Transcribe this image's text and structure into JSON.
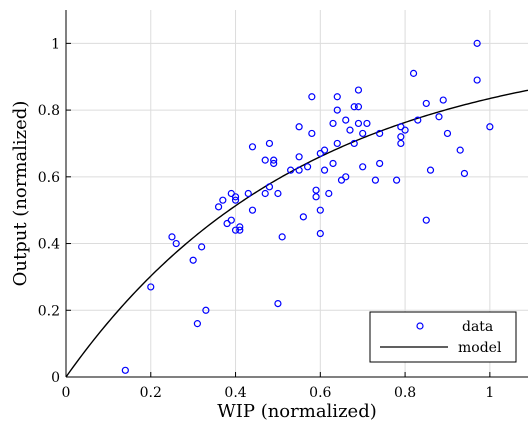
{
  "chart_data": {
    "type": "scatter",
    "title": "",
    "xlabel": "WIP (normalized)",
    "ylabel": "Output (normalized)",
    "xlim": [
      0,
      1.09
    ],
    "ylim": [
      0,
      1.1
    ],
    "xticks": [
      0,
      0.2,
      0.4,
      0.6,
      0.8,
      1
    ],
    "xtick_labels": [
      "0",
      "0.2",
      "0.4",
      "0.6",
      "0.8",
      "1"
    ],
    "yticks": [
      0,
      0.2,
      0.4,
      0.6,
      0.8,
      1
    ],
    "ytick_labels": [
      "0",
      "0.2",
      "0.4",
      "0.6",
      "0.8",
      "1"
    ],
    "grid": true,
    "legend_position": "bottom-right",
    "colors": {
      "data": "#0000ff",
      "model": "#000000",
      "grid": "#dcdcdc"
    },
    "series": [
      {
        "name": "data",
        "type": "scatter",
        "marker": "circle-open",
        "points": [
          [
            0.14,
            0.02
          ],
          [
            0.2,
            0.27
          ],
          [
            0.25,
            0.42
          ],
          [
            0.26,
            0.4
          ],
          [
            0.3,
            0.35
          ],
          [
            0.32,
            0.39
          ],
          [
            0.31,
            0.16
          ],
          [
            0.33,
            0.2
          ],
          [
            0.36,
            0.51
          ],
          [
            0.37,
            0.53
          ],
          [
            0.38,
            0.46
          ],
          [
            0.39,
            0.55
          ],
          [
            0.39,
            0.47
          ],
          [
            0.4,
            0.54
          ],
          [
            0.4,
            0.53
          ],
          [
            0.4,
            0.44
          ],
          [
            0.41,
            0.44
          ],
          [
            0.41,
            0.45
          ],
          [
            0.43,
            0.55
          ],
          [
            0.44,
            0.5
          ],
          [
            0.44,
            0.69
          ],
          [
            0.47,
            0.65
          ],
          [
            0.47,
            0.55
          ],
          [
            0.48,
            0.7
          ],
          [
            0.48,
            0.57
          ],
          [
            0.49,
            0.65
          ],
          [
            0.49,
            0.64
          ],
          [
            0.5,
            0.55
          ],
          [
            0.51,
            0.42
          ],
          [
            0.5,
            0.22
          ],
          [
            0.53,
            0.62
          ],
          [
            0.55,
            0.75
          ],
          [
            0.55,
            0.66
          ],
          [
            0.55,
            0.62
          ],
          [
            0.56,
            0.48
          ],
          [
            0.57,
            0.63
          ],
          [
            0.58,
            0.73
          ],
          [
            0.58,
            0.84
          ],
          [
            0.59,
            0.56
          ],
          [
            0.59,
            0.54
          ],
          [
            0.6,
            0.67
          ],
          [
            0.6,
            0.5
          ],
          [
            0.6,
            0.43
          ],
          [
            0.61,
            0.68
          ],
          [
            0.61,
            0.62
          ],
          [
            0.62,
            0.55
          ],
          [
            0.63,
            0.64
          ],
          [
            0.63,
            0.76
          ],
          [
            0.64,
            0.8
          ],
          [
            0.64,
            0.84
          ],
          [
            0.64,
            0.7
          ],
          [
            0.65,
            0.59
          ],
          [
            0.66,
            0.77
          ],
          [
            0.66,
            0.6
          ],
          [
            0.67,
            0.74
          ],
          [
            0.68,
            0.81
          ],
          [
            0.68,
            0.7
          ],
          [
            0.69,
            0.81
          ],
          [
            0.69,
            0.86
          ],
          [
            0.69,
            0.76
          ],
          [
            0.7,
            0.63
          ],
          [
            0.7,
            0.73
          ],
          [
            0.71,
            0.76
          ],
          [
            0.73,
            0.59
          ],
          [
            0.74,
            0.64
          ],
          [
            0.74,
            0.73
          ],
          [
            0.78,
            0.59
          ],
          [
            0.79,
            0.75
          ],
          [
            0.79,
            0.72
          ],
          [
            0.79,
            0.7
          ],
          [
            0.8,
            0.74
          ],
          [
            0.82,
            0.91
          ],
          [
            0.83,
            0.77
          ],
          [
            0.85,
            0.82
          ],
          [
            0.85,
            0.47
          ],
          [
            0.86,
            0.62
          ],
          [
            0.88,
            0.78
          ],
          [
            0.89,
            0.83
          ],
          [
            0.9,
            0.73
          ],
          [
            0.93,
            0.68
          ],
          [
            0.94,
            0.61
          ],
          [
            0.97,
            1.0
          ],
          [
            0.97,
            0.89
          ],
          [
            1.0,
            0.75
          ]
        ]
      },
      {
        "name": "model",
        "type": "line",
        "function": "1 - exp(-1.8 x)",
        "x_range": [
          0,
          1.09
        ]
      }
    ],
    "legend_entries": [
      "data",
      "model"
    ]
  }
}
